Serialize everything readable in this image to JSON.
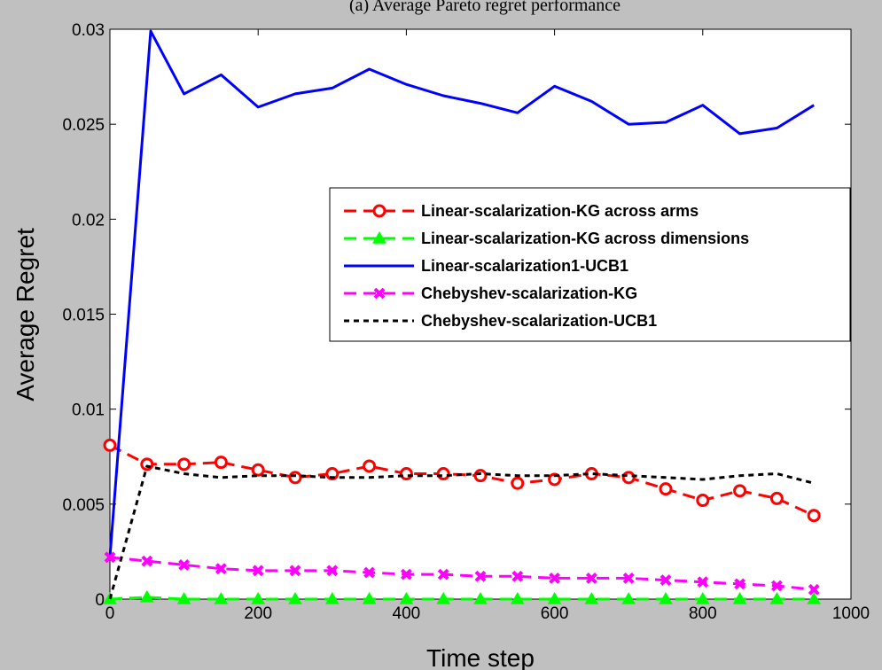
{
  "chart_data": {
    "type": "line",
    "title": "(a) Average Pareto regret performance",
    "xlabel": "Time step",
    "ylabel": "Average Regret",
    "xlim": [
      0,
      1000
    ],
    "ylim": [
      0,
      0.03
    ],
    "xticks": [
      0,
      200,
      400,
      600,
      800,
      1000
    ],
    "xtick_labels": [
      "0",
      "200",
      "400",
      "600",
      "800",
      "1000"
    ],
    "yticks": [
      0,
      0.005,
      0.01,
      0.015,
      0.02,
      0.025,
      0.03
    ],
    "ytick_labels": [
      "0",
      "0.005",
      "0.01",
      "0.015",
      "0.02",
      "0.025",
      "0.03"
    ],
    "grid": false,
    "legend_position": "right-center",
    "series": [
      {
        "name": "Linear-scalarization-KG across arms",
        "color": "#ff0000",
        "style": "dashed",
        "marker": "circle",
        "x": [
          0,
          50,
          100,
          150,
          200,
          250,
          300,
          350,
          400,
          450,
          500,
          550,
          600,
          650,
          700,
          750,
          800,
          850,
          900,
          950
        ],
        "y": [
          0.0081,
          0.0071,
          0.0071,
          0.0072,
          0.0068,
          0.0064,
          0.0066,
          0.007,
          0.0066,
          0.0066,
          0.0065,
          0.0061,
          0.0063,
          0.0066,
          0.0064,
          0.0058,
          0.0052,
          0.0057,
          0.0053,
          0.0044
        ]
      },
      {
        "name": "Linear-scalarization-KG across dimensions",
        "color": "#00ff00",
        "style": "dashed",
        "marker": "triangle",
        "x": [
          0,
          50,
          100,
          150,
          200,
          250,
          300,
          350,
          400,
          450,
          500,
          550,
          600,
          650,
          700,
          750,
          800,
          850,
          900,
          950
        ],
        "y": [
          0,
          0.0001,
          0,
          0,
          0,
          0,
          0,
          0,
          0,
          0,
          0,
          0,
          0,
          0,
          0,
          0,
          0,
          0,
          0,
          0
        ]
      },
      {
        "name": "Linear-scalarization1-UCB1",
        "color": "#0000ff",
        "style": "solid",
        "marker": "none",
        "x": [
          0,
          55,
          100,
          150,
          200,
          250,
          300,
          350,
          400,
          450,
          500,
          550,
          600,
          650,
          700,
          750,
          800,
          850,
          900,
          950
        ],
        "y": [
          0.0022,
          0.0299,
          0.0266,
          0.0276,
          0.0259,
          0.0266,
          0.0269,
          0.0279,
          0.0271,
          0.0265,
          0.0261,
          0.0256,
          0.027,
          0.0262,
          0.025,
          0.0251,
          0.026,
          0.0245,
          0.0248,
          0.026
        ]
      },
      {
        "name": "Chebyshev-scalarization-KG",
        "color": "#ff00ff",
        "style": "dashed",
        "marker": "x",
        "x": [
          0,
          50,
          100,
          150,
          200,
          250,
          300,
          350,
          400,
          450,
          500,
          550,
          600,
          650,
          700,
          750,
          800,
          850,
          900,
          950
        ],
        "y": [
          0.0022,
          0.002,
          0.0018,
          0.0016,
          0.0015,
          0.0015,
          0.0015,
          0.0014,
          0.0013,
          0.0013,
          0.0012,
          0.0012,
          0.0011,
          0.0011,
          0.0011,
          0.001,
          0.0009,
          0.0008,
          0.0007,
          0.0005
        ]
      },
      {
        "name": "Chebyshev-scalarization-UCB1",
        "color": "#000000",
        "style": "dotted",
        "marker": "none",
        "x": [
          0,
          50,
          100,
          150,
          200,
          250,
          300,
          350,
          400,
          450,
          500,
          550,
          600,
          650,
          700,
          750,
          800,
          850,
          900,
          950
        ],
        "y": [
          0,
          0.007,
          0.0066,
          0.0064,
          0.0065,
          0.0065,
          0.0064,
          0.0064,
          0.0065,
          0.0065,
          0.0066,
          0.0065,
          0.0065,
          0.0066,
          0.0065,
          0.0064,
          0.0063,
          0.0065,
          0.0066,
          0.0061
        ]
      }
    ]
  }
}
